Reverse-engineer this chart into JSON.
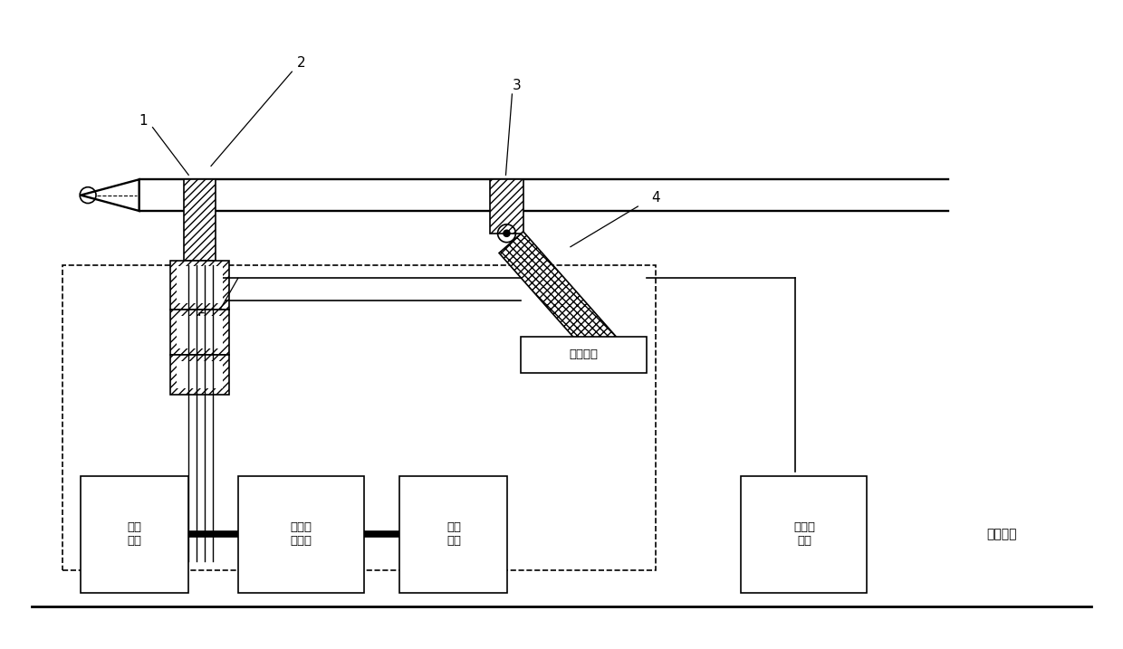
{
  "bg_color": "#ffffff",
  "line_color": "#000000",
  "labels": {
    "control_unit": "控制单元",
    "portable_power": "便携\n电源",
    "core_processor": "核心处\n理单元",
    "comm_unit": "通信\n单元",
    "wind_unit": "测风速\n单元",
    "ladder_top": "云梯顶部"
  },
  "figsize": [
    12.4,
    7.17
  ],
  "dpi": 100
}
